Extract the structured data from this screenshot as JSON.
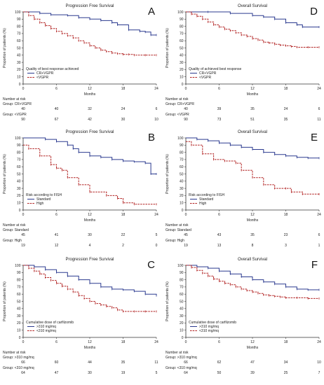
{
  "colors": {
    "blue": "#2b3a8f",
    "red": "#b01e1e",
    "axis": "#333333",
    "text": "#222222"
  },
  "chart_data": [
    {
      "type": "line",
      "panel_letter": "A",
      "title": "Progression Free Survival",
      "xlabel": "Months",
      "ylabel": "Proportion of patients (%)",
      "xlim": [
        0,
        24
      ],
      "ylim": [
        0,
        100
      ],
      "xticks": [
        "0",
        "6",
        "12",
        "18",
        "24"
      ],
      "yticks": [
        "0",
        "10",
        "20",
        "30",
        "40",
        "50",
        "60",
        "70",
        "80",
        "90",
        "100"
      ],
      "legend_title": "Quality of best response achieved",
      "legend_placement": "bottom-left",
      "series": [
        {
          "name": "CR+VGPR",
          "color": "#2b3a8f",
          "style": "solid",
          "x": [
            0,
            3,
            5,
            8,
            10,
            12,
            14,
            16,
            17,
            19,
            21,
            22,
            23,
            24
          ],
          "y": [
            100,
            98,
            96,
            95,
            92,
            90,
            88,
            85,
            82,
            75,
            73,
            72,
            68,
            68
          ]
        },
        {
          "name": "<VGPR",
          "color": "#b01e1e",
          "style": "dashed",
          "x": [
            0,
            1,
            2,
            3,
            4,
            5,
            6,
            7,
            8,
            9,
            10,
            11,
            12,
            13,
            14,
            15,
            16,
            17,
            18,
            19,
            20,
            22,
            24
          ],
          "y": [
            100,
            95,
            90,
            85,
            81,
            77,
            73,
            70,
            67,
            64,
            60,
            57,
            53,
            50,
            47,
            45,
            43,
            42,
            41,
            41,
            40,
            40,
            40
          ]
        }
      ],
      "risk_table": {
        "header": "Number at risk",
        "rows": [
          {
            "label": "Group: CR+VGPR",
            "values": [
              "40",
              "40",
              "32",
              "24",
              "6"
            ]
          },
          {
            "label": "Group: <VGPR",
            "values": [
              "90",
              "67",
              "42",
              "30",
              "10"
            ]
          }
        ]
      }
    },
    {
      "type": "line",
      "panel_letter": "D",
      "title": "Overall Survival",
      "xlabel": "Months",
      "ylabel": "Proportion of patients (%)",
      "xlim": [
        0,
        24
      ],
      "ylim": [
        0,
        100
      ],
      "xticks": [
        "0",
        "6",
        "12",
        "18",
        "24"
      ],
      "yticks": [
        "0",
        "10",
        "20",
        "30",
        "40",
        "50",
        "60",
        "70",
        "80",
        "90",
        "100"
      ],
      "legend_title": "Quality of achieved best response",
      "legend_placement": "bottom-left",
      "series": [
        {
          "name": "CR+VGPR",
          "color": "#2b3a8f",
          "style": "solid",
          "x": [
            0,
            4,
            8,
            12,
            14,
            16,
            18,
            20,
            21,
            24
          ],
          "y": [
            100,
            100,
            98,
            95,
            93,
            90,
            85,
            82,
            79,
            79
          ]
        },
        {
          "name": "<VGPR",
          "color": "#b01e1e",
          "style": "dashed",
          "x": [
            0,
            1,
            2,
            3,
            4,
            5,
            6,
            7,
            8,
            9,
            10,
            11,
            12,
            13,
            14,
            15,
            16,
            17,
            18,
            19,
            20,
            22,
            24
          ],
          "y": [
            100,
            97,
            94,
            90,
            86,
            82,
            79,
            76,
            74,
            71,
            68,
            66,
            63,
            61,
            58,
            57,
            55,
            54,
            53,
            52,
            51,
            51,
            51
          ]
        }
      ],
      "risk_table": {
        "header": "Number at risk",
        "rows": [
          {
            "label": "Group: CR+VGPR",
            "values": [
              "40",
              "39",
              "35",
              "24",
              "6"
            ]
          },
          {
            "label": "Group: <VGPR",
            "values": [
              "90",
              "73",
              "51",
              "35",
              "11"
            ]
          }
        ]
      }
    },
    {
      "type": "line",
      "panel_letter": "B",
      "title": "Progression Free Survival",
      "xlabel": "Months",
      "ylabel": "Proportion of patients (%)",
      "xlim": [
        0,
        24
      ],
      "ylim": [
        0,
        100
      ],
      "xticks": [
        "0",
        "6",
        "12",
        "18",
        "24"
      ],
      "yticks": [
        "0",
        "10",
        "20",
        "30",
        "40",
        "50",
        "60",
        "70",
        "80",
        "90",
        "100"
      ],
      "legend_title": "Risk according to FISH",
      "legend_placement": "bottom-left",
      "series": [
        {
          "name": "Standard",
          "color": "#2b3a8f",
          "style": "solid",
          "x": [
            0,
            4,
            6,
            8,
            9,
            10,
            12,
            14,
            16,
            18,
            20,
            22,
            23,
            24
          ],
          "y": [
            100,
            98,
            95,
            90,
            85,
            80,
            75,
            73,
            70,
            68,
            67,
            65,
            50,
            50
          ]
        },
        {
          "name": "High",
          "color": "#b01e1e",
          "style": "dashed",
          "x": [
            0,
            1,
            3,
            5,
            6,
            7,
            8,
            10,
            12,
            15,
            17,
            18,
            20,
            24
          ],
          "y": [
            90,
            85,
            75,
            63,
            58,
            55,
            45,
            35,
            25,
            20,
            16,
            10,
            8,
            8
          ]
        }
      ],
      "risk_table": {
        "header": "Number at risk",
        "rows": [
          {
            "label": "Group: Standard",
            "values": [
              "45",
              "41",
              "30",
              "22",
              "5"
            ]
          },
          {
            "label": "Group: High",
            "values": [
              "19",
              "12",
              "4",
              "2",
              "0"
            ]
          }
        ]
      }
    },
    {
      "type": "line",
      "panel_letter": "E",
      "title": "Overall Survival",
      "xlabel": "Months",
      "ylabel": "Proportion of patients (%)",
      "xlim": [
        0,
        24
      ],
      "ylim": [
        0,
        100
      ],
      "xticks": [
        "0",
        "6",
        "12",
        "18",
        "24"
      ],
      "yticks": [
        "0",
        "10",
        "20",
        "30",
        "40",
        "50",
        "60",
        "70",
        "80",
        "90",
        "100"
      ],
      "legend_title": "Risk according to FISH",
      "legend_placement": "bottom-left",
      "series": [
        {
          "name": "Standard",
          "color": "#2b3a8f",
          "style": "solid",
          "x": [
            0,
            2,
            4,
            6,
            8,
            10,
            12,
            14,
            16,
            18,
            20,
            22,
            24
          ],
          "y": [
            100,
            98,
            96,
            93,
            90,
            87,
            84,
            80,
            77,
            75,
            73,
            72,
            72
          ]
        },
        {
          "name": "High",
          "color": "#b01e1e",
          "style": "dashed",
          "x": [
            0,
            1,
            3,
            5,
            7,
            9,
            10,
            12,
            14,
            16,
            18,
            19,
            21,
            24
          ],
          "y": [
            95,
            90,
            78,
            70,
            68,
            65,
            55,
            45,
            35,
            30,
            30,
            25,
            22,
            22
          ]
        }
      ],
      "risk_table": {
        "header": "Number at risk",
        "rows": [
          {
            "label": "Group: Standard",
            "values": [
              "45",
              "43",
              "35",
              "23",
              "6"
            ]
          },
          {
            "label": "Group: High",
            "values": [
              "19",
              "13",
              "8",
              "3",
              "1"
            ]
          }
        ]
      }
    },
    {
      "type": "line",
      "panel_letter": "C",
      "title": "Progression Free Survival",
      "xlabel": "Months",
      "ylabel": "Proportion of patients (%)",
      "xlim": [
        0,
        24
      ],
      "ylim": [
        0,
        100
      ],
      "xticks": [
        "0",
        "6",
        "12",
        "18",
        "24"
      ],
      "yticks": [
        "0",
        "10",
        "20",
        "30",
        "40",
        "50",
        "60",
        "70",
        "80",
        "90",
        "100"
      ],
      "legend_title": "Cumulative dose of carfilzomib",
      "legend_placement": "bottom-left",
      "series": [
        {
          "name": ">310 mg/mq",
          "color": "#2b3a8f",
          "style": "solid",
          "x": [
            0,
            2,
            4,
            6,
            8,
            10,
            12,
            14,
            16,
            18,
            20,
            22,
            24
          ],
          "y": [
            100,
            98,
            94,
            90,
            85,
            80,
            75,
            70,
            67,
            66,
            64,
            60,
            58
          ]
        },
        {
          "name": "<310 mg/mq",
          "color": "#b01e1e",
          "style": "dashed",
          "x": [
            0,
            1,
            2,
            3,
            4,
            5,
            6,
            7,
            8,
            9,
            10,
            11,
            12,
            13,
            14,
            15,
            16,
            17,
            18,
            20,
            22,
            24
          ],
          "y": [
            100,
            96,
            92,
            88,
            83,
            79,
            75,
            71,
            67,
            63,
            58,
            54,
            50,
            47,
            45,
            43,
            41,
            38,
            36,
            36,
            36,
            36
          ]
        }
      ],
      "risk_table": {
        "header": "Number at risk",
        "rows": [
          {
            "label": "Group: >310 mg/mq",
            "values": [
              "66",
              "60",
              "44",
              "35",
              "11"
            ]
          },
          {
            "label": "Group: <310 mg/mq",
            "values": [
              "64",
              "47",
              "30",
              "19",
              "5"
            ]
          }
        ]
      }
    },
    {
      "type": "line",
      "panel_letter": "F",
      "title": "Overall Survival",
      "xlabel": "Months",
      "ylabel": "Proportion of patients (%)",
      "xlim": [
        0,
        24
      ],
      "ylim": [
        0,
        100
      ],
      "xticks": [
        "0",
        "6",
        "12",
        "18",
        "24"
      ],
      "yticks": [
        "0",
        "10",
        "20",
        "30",
        "40",
        "50",
        "60",
        "70",
        "80",
        "90",
        "100"
      ],
      "legend_title": "Cumulative dose of carfilzomib",
      "legend_placement": "bottom-left",
      "series": [
        {
          "name": ">310 mg/mq",
          "color": "#2b3a8f",
          "style": "solid",
          "x": [
            0,
            2,
            4,
            6,
            8,
            10,
            12,
            14,
            16,
            18,
            20,
            22,
            24
          ],
          "y": [
            100,
            98,
            96,
            92,
            88,
            84,
            80,
            77,
            74,
            70,
            67,
            66,
            66
          ]
        },
        {
          "name": "<310 mg/mq",
          "color": "#b01e1e",
          "style": "dashed",
          "x": [
            0,
            1,
            2,
            3,
            4,
            5,
            6,
            7,
            8,
            9,
            10,
            11,
            12,
            13,
            14,
            15,
            16,
            17,
            18,
            20,
            22,
            24
          ],
          "y": [
            100,
            97,
            93,
            89,
            85,
            81,
            78,
            75,
            73,
            70,
            67,
            65,
            63,
            61,
            59,
            58,
            57,
            56,
            55,
            55,
            54,
            54
          ]
        }
      ],
      "risk_table": {
        "header": "Number at risk",
        "rows": [
          {
            "label": "Group: >310 mg/mq",
            "values": [
              "66",
              "62",
              "47",
              "34",
              "10"
            ]
          },
          {
            "label": "Group: <310 mg/mq",
            "values": [
              "64",
              "50",
              "39",
              "25",
              "7"
            ]
          }
        ]
      }
    }
  ]
}
